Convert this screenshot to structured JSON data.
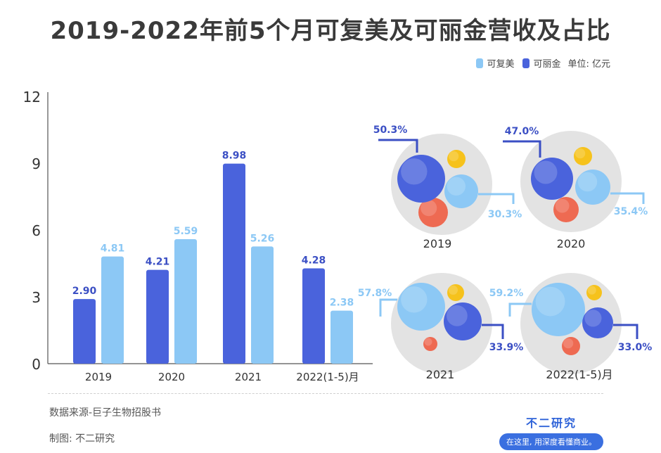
{
  "title": "2019-2022年前5个月可复美及可丽金营收及占比",
  "legend": {
    "series1": "可复美",
    "series2": "可丽金",
    "unit": "单位: 亿元"
  },
  "colors": {
    "kefumei": "#8cc8f5",
    "kelijin": "#4a63dc",
    "kelijin_label": "#3b4fc4",
    "kefumei_label": "#8cc8f5",
    "yellow": "#f6c21c",
    "red": "#ee6a52",
    "circle_bg": "#d9d9d9"
  },
  "chart_data": [
    {
      "type": "bar",
      "categories": [
        "2019",
        "2020",
        "2021",
        "2022(1-5)月"
      ],
      "series": [
        {
          "name": "可丽金",
          "values": [
            2.9,
            4.21,
            8.98,
            4.28
          ],
          "labels": [
            "2.90",
            "4.21",
            "8.98",
            "4.28"
          ]
        },
        {
          "name": "可复美",
          "values": [
            4.81,
            5.59,
            5.26,
            2.38
          ],
          "labels": [
            "4.81",
            "5.59",
            "5.26",
            "2.38"
          ]
        }
      ],
      "ylim": [
        0,
        12
      ],
      "yticks": [
        "0",
        "3",
        "6",
        "9",
        "12"
      ],
      "grid": false
    },
    {
      "type": "bubble-share",
      "panels": [
        {
          "year": "2019",
          "kelijin_share": 50.3,
          "kefumei_share": 30.3,
          "kelijin_label": "50.3%",
          "kefumei_label": "30.3%"
        },
        {
          "year": "2020",
          "kelijin_share": 47.0,
          "kefumei_share": 35.4,
          "kelijin_label": "47.0%",
          "kefumei_label": "35.4%"
        },
        {
          "year": "2021",
          "kelijin_share": 33.9,
          "kefumei_share": 57.8,
          "kelijin_label": "33.9%",
          "kefumei_label": "57.8%"
        },
        {
          "year": "2022(1-5)月",
          "kelijin_share": 33.0,
          "kefumei_share": 59.2,
          "kelijin_label": "33.0%",
          "kefumei_label": "59.2%"
        }
      ]
    }
  ],
  "footer": {
    "source": "数据来源-巨子生物招股书",
    "maker": "制图: 不二研究",
    "brand": "不二研究",
    "slogan": "在这里, 用深度看懂商业。"
  }
}
